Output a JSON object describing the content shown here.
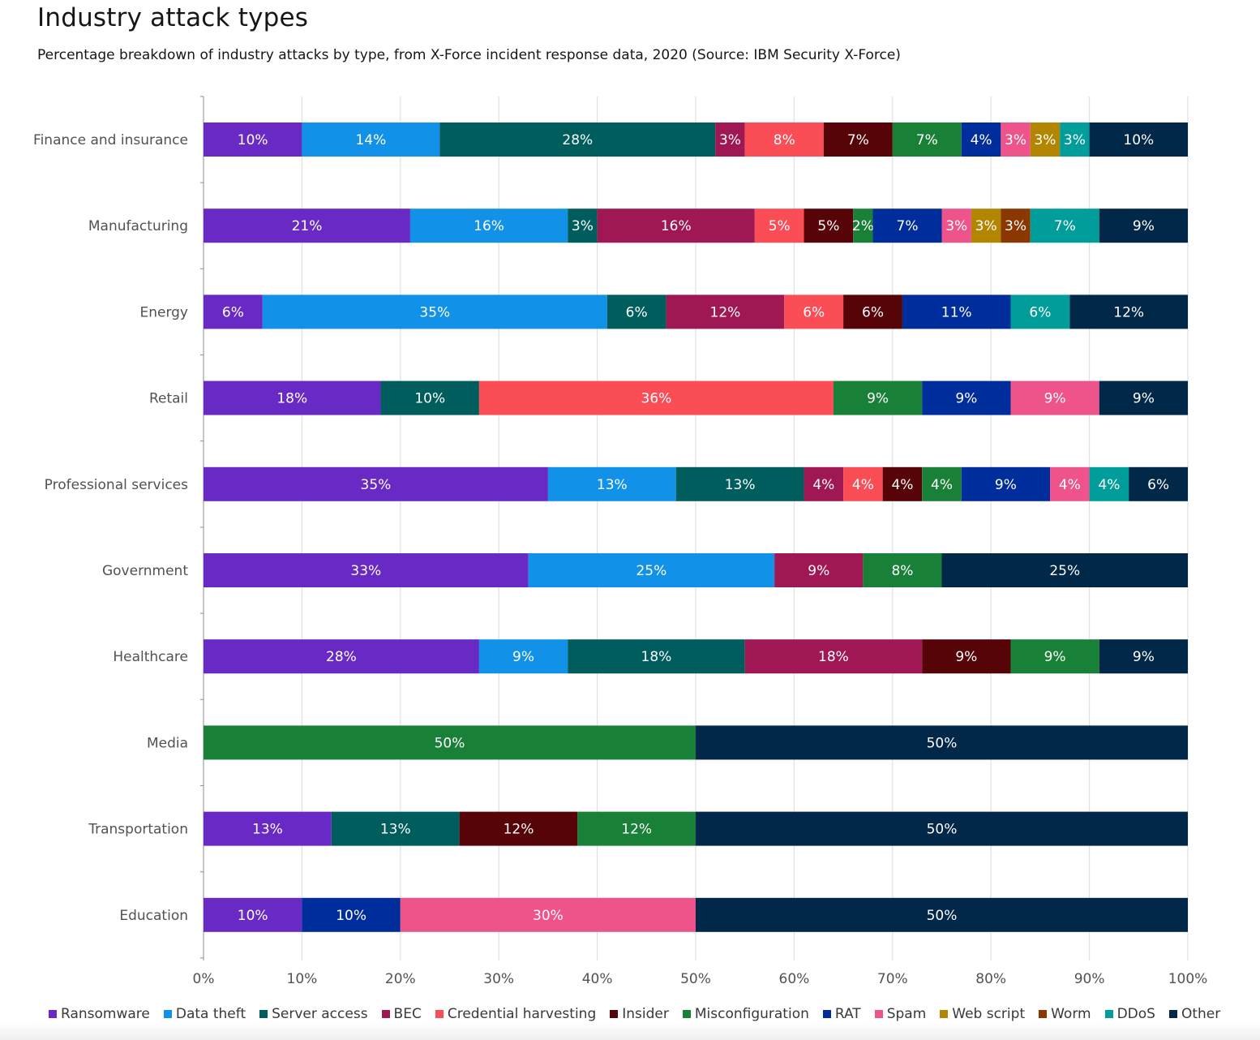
{
  "chart_data": {
    "type": "bar",
    "orientation": "horizontal",
    "stacked": true,
    "title": "Industry attack types",
    "subtitle": "Percentage breakdown of industry attacks by type, from X-Force incident response data, 2020 (Source: IBM Security X-Force)",
    "xlim": [
      0,
      100
    ],
    "x_ticks": [
      "0%",
      "10%",
      "20%",
      "30%",
      "40%",
      "50%",
      "60%",
      "70%",
      "80%",
      "90%",
      "100%"
    ],
    "grid": true,
    "legend_position": "bottom",
    "categories": [
      "Finance and insurance",
      "Manufacturing",
      "Energy",
      "Retail",
      "Professional services",
      "Government",
      "Healthcare",
      "Media",
      "Transportation",
      "Education"
    ],
    "series": [
      {
        "name": "Ransomware",
        "color": "#6929c4",
        "values": [
          10,
          21,
          6,
          18,
          35,
          33,
          28,
          0,
          13,
          10
        ]
      },
      {
        "name": "Data theft",
        "color": "#1192e8",
        "values": [
          14,
          16,
          35,
          0,
          13,
          25,
          9,
          0,
          0,
          0
        ]
      },
      {
        "name": "Server access",
        "color": "#005d5d",
        "values": [
          28,
          3,
          6,
          10,
          13,
          0,
          18,
          0,
          13,
          0
        ]
      },
      {
        "name": "BEC",
        "color": "#9f1853",
        "values": [
          3,
          16,
          12,
          0,
          4,
          9,
          18,
          0,
          0,
          0
        ]
      },
      {
        "name": "Credential harvesting",
        "color": "#fa4d56",
        "values": [
          8,
          5,
          6,
          36,
          4,
          0,
          0,
          0,
          0,
          0
        ]
      },
      {
        "name": "Insider",
        "color": "#570408",
        "values": [
          7,
          5,
          6,
          0,
          4,
          0,
          9,
          0,
          12,
          0
        ]
      },
      {
        "name": "Misconfiguration",
        "color": "#198038",
        "values": [
          7,
          2,
          0,
          9,
          4,
          8,
          9,
          50,
          12,
          0
        ]
      },
      {
        "name": "RAT",
        "color": "#002d9c",
        "values": [
          4,
          7,
          11,
          9,
          9,
          0,
          0,
          0,
          0,
          10
        ]
      },
      {
        "name": "Spam",
        "color": "#ee538b",
        "values": [
          3,
          3,
          0,
          9,
          4,
          0,
          0,
          0,
          0,
          30
        ]
      },
      {
        "name": "Web script",
        "color": "#b28600",
        "values": [
          3,
          3,
          0,
          0,
          0,
          0,
          0,
          0,
          0,
          0
        ]
      },
      {
        "name": "Worm",
        "color": "#8a3800",
        "values": [
          0,
          3,
          0,
          0,
          0,
          0,
          0,
          0,
          0,
          0
        ]
      },
      {
        "name": "DDoS",
        "color": "#009d9a",
        "values": [
          3,
          7,
          6,
          0,
          4,
          0,
          0,
          0,
          0,
          0
        ]
      },
      {
        "name": "Other",
        "color": "#012749",
        "values": [
          10,
          9,
          12,
          9,
          6,
          25,
          9,
          50,
          50,
          50
        ]
      }
    ]
  }
}
